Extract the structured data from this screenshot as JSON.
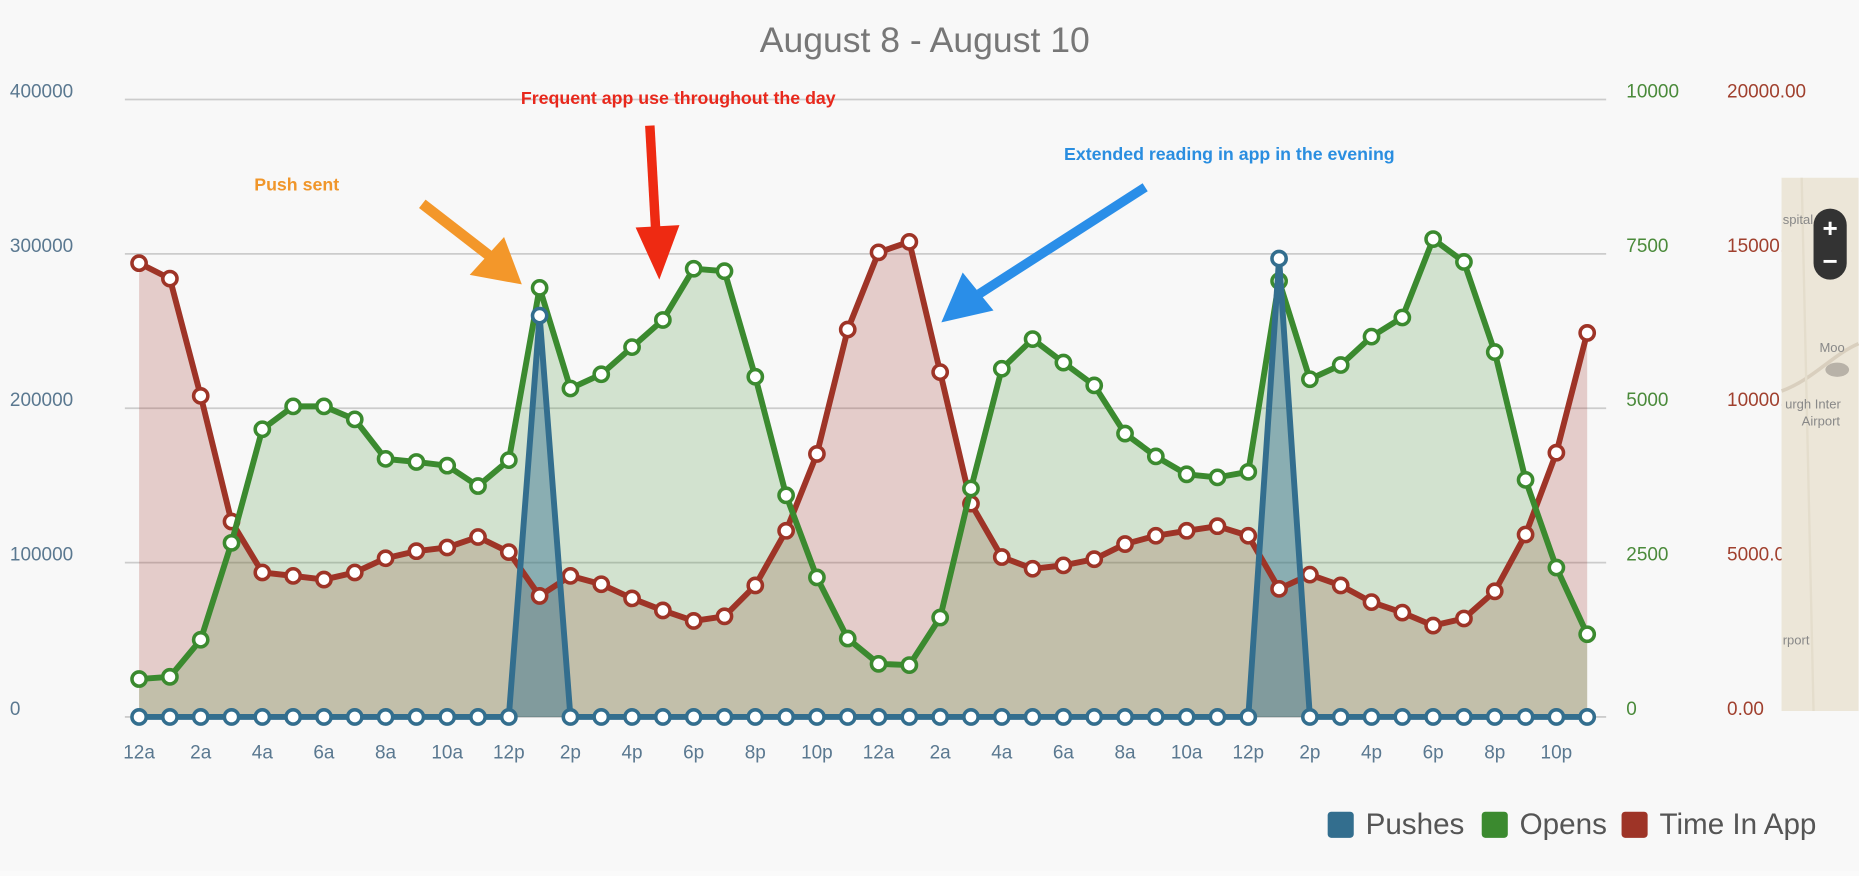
{
  "chart_data": {
    "type": "line",
    "title": "August 8 - August 10",
    "categories": [
      "12a",
      null,
      "2a",
      null,
      "4a",
      null,
      "6a",
      null,
      "8a",
      null,
      "10a",
      null,
      "12p",
      null,
      "2p",
      null,
      "4p",
      null,
      "6p",
      null,
      "8p",
      null,
      "10p",
      null,
      "12a",
      null,
      "2a",
      null,
      "4a",
      null,
      "6a",
      null,
      "8a",
      null,
      "10a",
      null,
      "12p",
      null,
      "2p",
      null,
      "4p",
      null,
      "6p",
      null,
      "8p",
      null,
      "10p",
      null
    ],
    "series": [
      {
        "name": "Pushes",
        "color": "#336e8e",
        "axis": "y",
        "values": [
          0,
          0,
          0,
          0,
          0,
          0,
          0,
          0,
          0,
          0,
          0,
          0,
          0,
          260000,
          0,
          0,
          0,
          0,
          0,
          0,
          0,
          0,
          0,
          0,
          0,
          0,
          0,
          0,
          0,
          0,
          0,
          0,
          0,
          0,
          0,
          0,
          0,
          297000,
          0,
          0,
          0,
          0,
          0,
          0,
          0,
          0,
          0,
          0
        ]
      },
      {
        "name": "Opens",
        "color": "#3b8a2f",
        "axis": "y2",
        "values": [
          614,
          650,
          1250,
          2820,
          4660,
          5030,
          5030,
          4820,
          4180,
          4130,
          4070,
          3740,
          4160,
          6950,
          5320,
          5550,
          5990,
          6430,
          7260,
          7220,
          5510,
          3590,
          2260,
          1270,
          860,
          840,
          1610,
          3700,
          5640,
          6120,
          5740,
          5370,
          4590,
          4220,
          3930,
          3880,
          3970,
          7060,
          5470,
          5700,
          6160,
          6470,
          7740,
          7370,
          5910,
          3840,
          2420,
          1340
        ]
      },
      {
        "name": "Time In App",
        "color": "#9e3427",
        "axis": "y3",
        "values": [
          14700,
          14200,
          10400,
          6330,
          4680,
          4570,
          4450,
          4680,
          5140,
          5370,
          5490,
          5830,
          5340,
          3920,
          4570,
          4300,
          3840,
          3450,
          3110,
          3260,
          4260,
          6030,
          8520,
          12550,
          15050,
          15390,
          11170,
          6910,
          5180,
          4800,
          4910,
          5110,
          5600,
          5870,
          6030,
          6180,
          5870,
          4150,
          4610,
          4260,
          3720,
          3380,
          2960,
          3190,
          4070,
          5910,
          8560,
          12440
        ]
      }
    ],
    "ylim": [
      0,
      400000
    ],
    "yticks": [
      0,
      100000,
      200000,
      300000,
      400000
    ],
    "y2lim": [
      0,
      10000
    ],
    "y2ticks": [
      0,
      2500,
      5000,
      7500,
      10000
    ],
    "y3lim": [
      0,
      20000
    ],
    "y3ticks": [
      {
        "value": 0,
        "label": "0.00"
      },
      {
        "value": 5000,
        "label": "5000.00"
      },
      {
        "value": 10000,
        "label": "10000.00"
      },
      {
        "value": 15000,
        "label": "15000.00"
      },
      {
        "value": 20000,
        "label": "20000.00"
      }
    ],
    "grid": true,
    "legend": "bottom-right",
    "annotations": [
      "Push sent",
      "Frequent app use throughout the day",
      "Extended reading in app in the evening"
    ]
  },
  "map": {
    "labels": [
      "spital",
      "Moo",
      "urgh Inter",
      "Airport",
      "rport"
    ],
    "zoom": [
      "+",
      "−"
    ]
  }
}
